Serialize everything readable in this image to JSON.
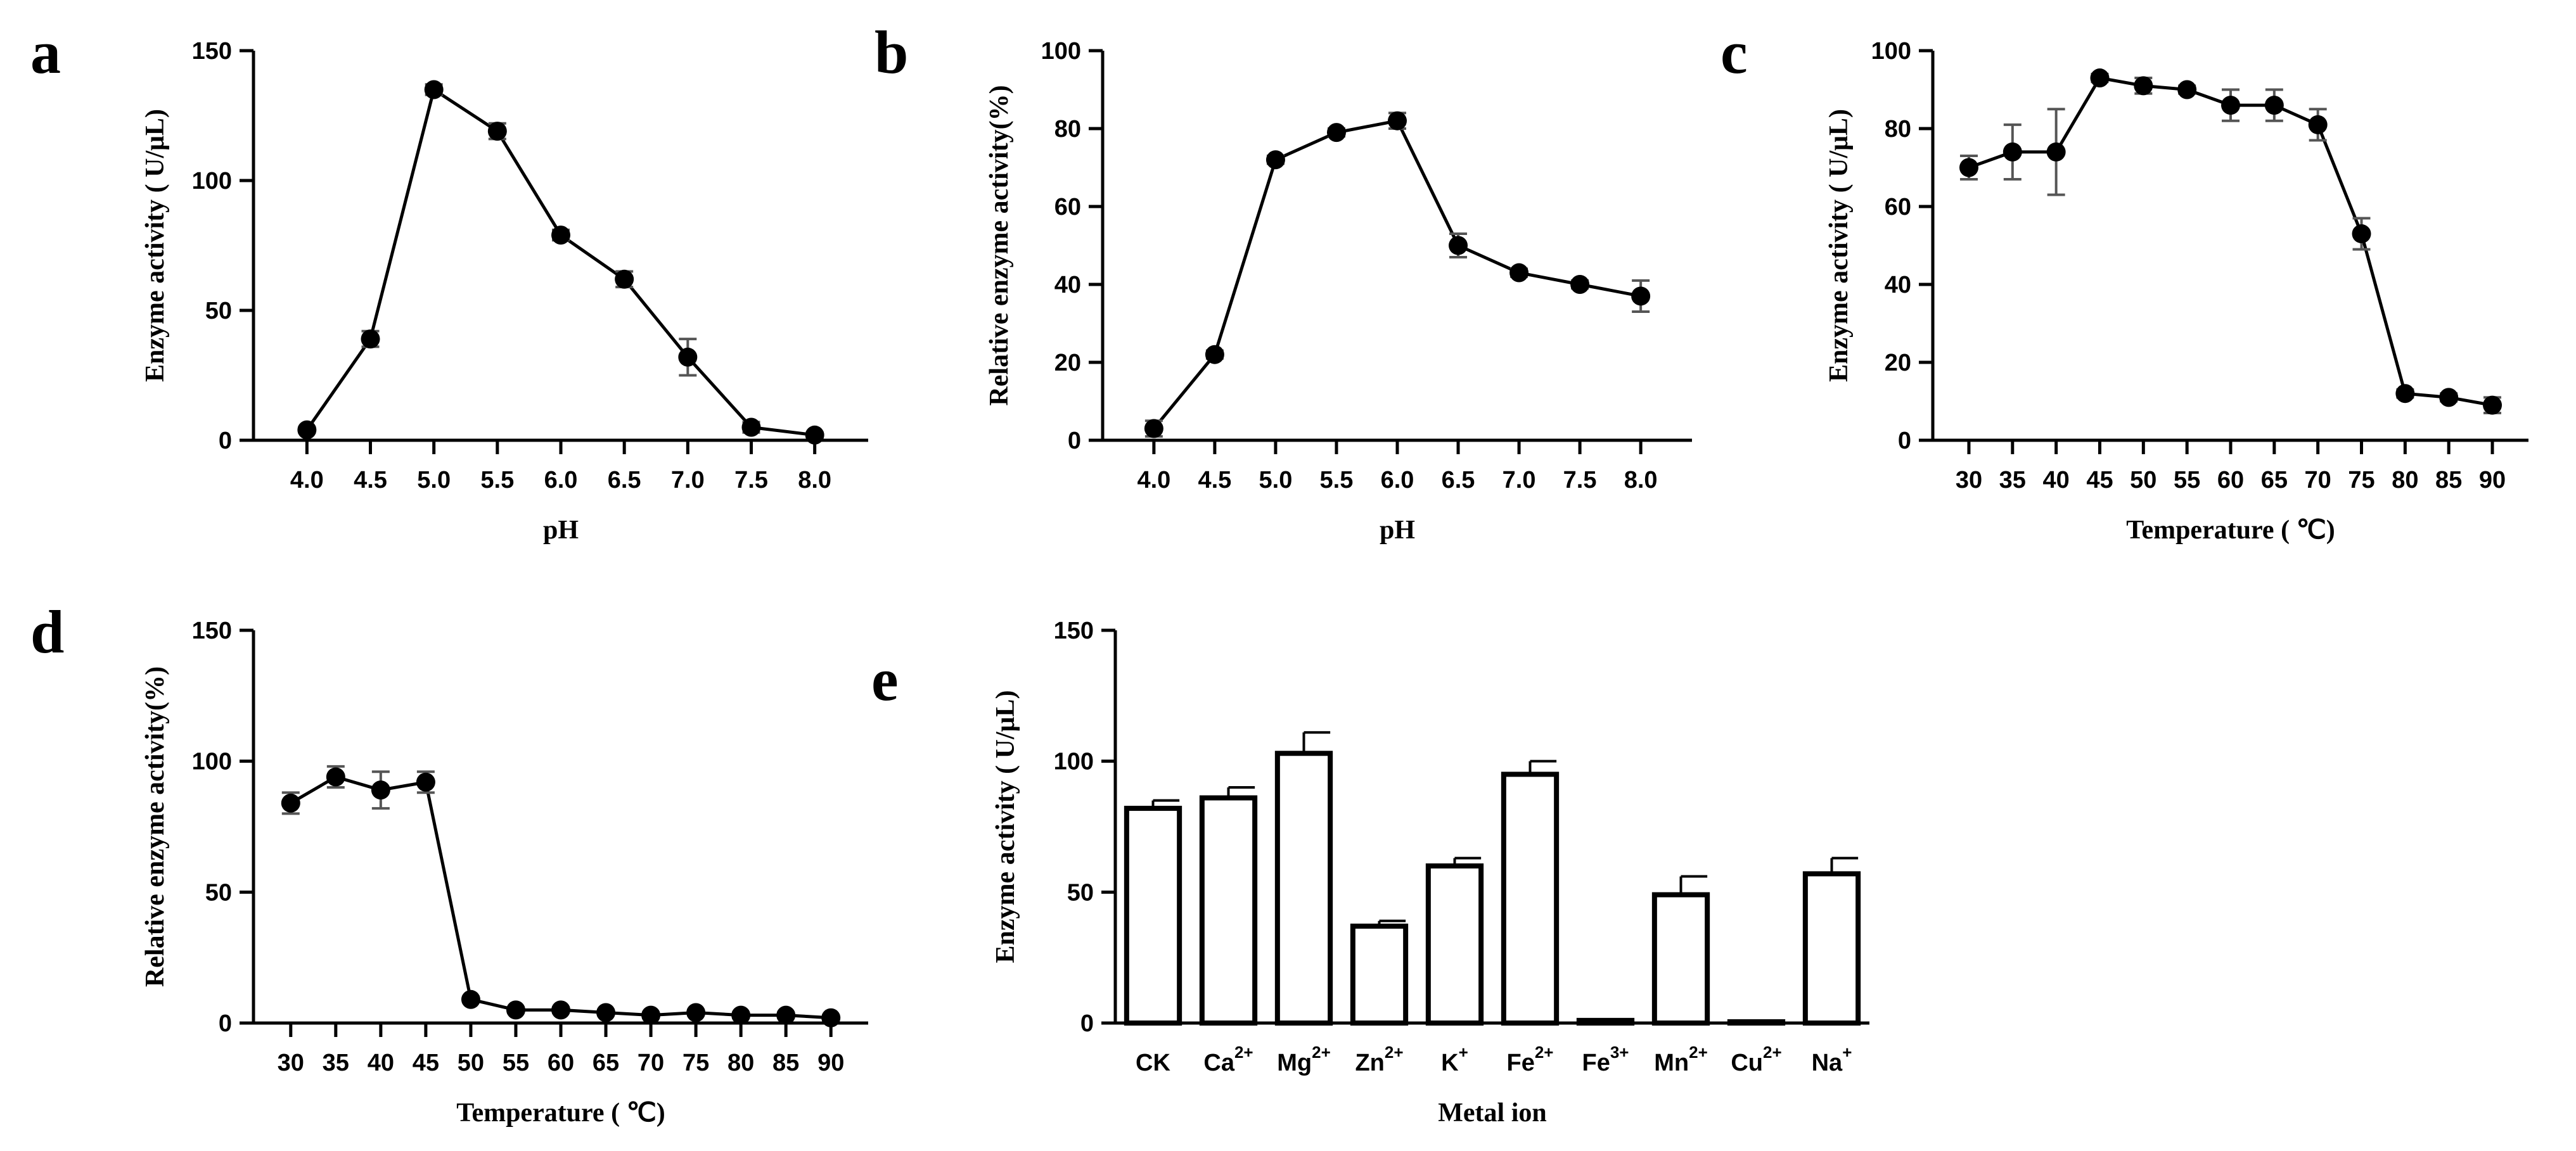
{
  "chart_data": [
    {
      "id": "a",
      "panel_label": "a",
      "type": "line",
      "x": [
        4.0,
        4.5,
        5.0,
        5.5,
        6.0,
        6.5,
        7.0,
        7.5,
        8.0
      ],
      "x_tick_labels": [
        "4.0",
        "4.5",
        "5.0",
        "5.5",
        "6.0",
        "6.5",
        "7.0",
        "7.5",
        "8.0"
      ],
      "y": [
        4,
        39,
        135,
        119,
        79,
        62,
        32,
        5,
        2
      ],
      "y_err": [
        1,
        3,
        2,
        3,
        2,
        3,
        7,
        2,
        1
      ],
      "ylim": [
        0,
        150
      ],
      "y_ticks": [
        0,
        50,
        100,
        150
      ],
      "xlabel": "pH",
      "ylabel": "Enzyme activity ( U/μL)"
    },
    {
      "id": "b",
      "panel_label": "b",
      "type": "line",
      "x": [
        4.0,
        4.5,
        5.0,
        5.5,
        6.0,
        6.5,
        7.0,
        7.5,
        8.0
      ],
      "x_tick_labels": [
        "4.0",
        "4.5",
        "5.0",
        "5.5",
        "6.0",
        "6.5",
        "7.0",
        "7.5",
        "8.0"
      ],
      "y": [
        3,
        22,
        72,
        79,
        82,
        50,
        43,
        40,
        37
      ],
      "y_err": [
        2,
        1,
        1,
        1,
        2,
        3,
        1,
        1,
        4
      ],
      "ylim": [
        0,
        100
      ],
      "y_ticks": [
        0,
        20,
        40,
        60,
        80,
        100
      ],
      "xlabel": "pH",
      "ylabel": "Relative enzyme activity(%)"
    },
    {
      "id": "c",
      "panel_label": "c",
      "type": "line",
      "x": [
        30,
        35,
        40,
        45,
        50,
        55,
        60,
        65,
        70,
        75,
        80,
        85,
        90
      ],
      "x_tick_labels": [
        "30",
        "35",
        "40",
        "45",
        "50",
        "55",
        "60",
        "65",
        "70",
        "75",
        "80",
        "85",
        "90"
      ],
      "y": [
        70,
        74,
        74,
        93,
        91,
        90,
        86,
        86,
        81,
        53,
        12,
        11,
        9
      ],
      "y_err": [
        3,
        7,
        11,
        1,
        2,
        1,
        4,
        4,
        4,
        4,
        1,
        1,
        2
      ],
      "ylim": [
        0,
        100
      ],
      "y_ticks": [
        0,
        20,
        40,
        60,
        80,
        100
      ],
      "xlabel": "Temperature (  ℃)",
      "ylabel": "Enzyme activity ( U/μL)"
    },
    {
      "id": "d",
      "panel_label": "d",
      "type": "line",
      "x": [
        30,
        35,
        40,
        45,
        50,
        55,
        60,
        65,
        70,
        75,
        80,
        85,
        90
      ],
      "x_tick_labels": [
        "30",
        "35",
        "40",
        "45",
        "50",
        "55",
        "60",
        "65",
        "70",
        "75",
        "80",
        "85",
        "90"
      ],
      "y": [
        84,
        94,
        89,
        92,
        9,
        5,
        5,
        4,
        3,
        4,
        3,
        3,
        2
      ],
      "y_err": [
        4,
        4,
        7,
        4,
        1,
        1,
        1,
        1,
        1,
        1,
        1,
        1,
        1
      ],
      "ylim": [
        0,
        150
      ],
      "y_ticks": [
        0,
        50,
        100,
        150
      ],
      "xlabel": "Temperature (  ℃)",
      "ylabel": "Relative enzyme activity(%)"
    },
    {
      "id": "e",
      "panel_label": "e",
      "type": "bar",
      "categories": [
        {
          "base": "CK",
          "sup": ""
        },
        {
          "base": "Ca",
          "sup": "2+"
        },
        {
          "base": "Mg",
          "sup": "2+"
        },
        {
          "base": "Zn",
          "sup": "2+"
        },
        {
          "base": "K",
          "sup": "+"
        },
        {
          "base": "Fe",
          "sup": "2+"
        },
        {
          "base": "Fe",
          "sup": "3+"
        },
        {
          "base": "Mn",
          "sup": "2+"
        },
        {
          "base": "Cu",
          "sup": "2+"
        },
        {
          "base": "Na",
          "sup": "+"
        }
      ],
      "values": [
        82,
        86,
        103,
        37,
        60,
        95,
        1,
        49,
        0,
        57
      ],
      "y_err": [
        3,
        4,
        8,
        2,
        3,
        5,
        0,
        7,
        0,
        6
      ],
      "ylim": [
        0,
        150
      ],
      "y_ticks": [
        0,
        50,
        100,
        150
      ],
      "xlabel": "Metal ion",
      "ylabel": "Enzyme activity ( U/μL)"
    }
  ]
}
